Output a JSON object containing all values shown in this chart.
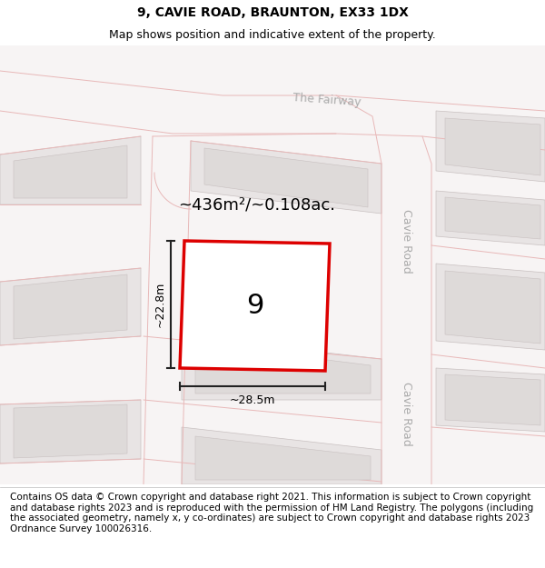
{
  "title_line1": "9, CAVIE ROAD, BRAUNTON, EX33 1DX",
  "title_line2": "Map shows position and indicative extent of the property.",
  "footer_text": "Contains OS data © Crown copyright and database right 2021. This information is subject to Crown copyright and database rights 2023 and is reproduced with the permission of HM Land Registry. The polygons (including the associated geometry, namely x, y co-ordinates) are subject to Crown copyright and database rights 2023 Ordnance Survey 100026316.",
  "area_label": "~436m²/~0.108ac.",
  "plot_number": "9",
  "width_label": "~28.5m",
  "height_label": "~22.8m",
  "road_label_fairway": "The Fairway",
  "road_label_cavie1": "Cavie Road",
  "road_label_cavie2": "Cavie Road",
  "bg_color": "#f7f4f4",
  "block_fill": "#e8e4e4",
  "block_edge": "#c8c0c0",
  "inner_fill": "#dedad9",
  "plot_fill": "#f0ecec",
  "plot_border": "#dd0000",
  "road_line": "#e8b8b8",
  "road_text": "#aaaaaa",
  "dim_color": "#222222",
  "title_fontsize": 10,
  "subtitle_fontsize": 9,
  "footer_fontsize": 7.5,
  "area_fontsize": 13,
  "plot_num_fontsize": 22,
  "dim_fontsize": 9,
  "road_fontsize": 9
}
